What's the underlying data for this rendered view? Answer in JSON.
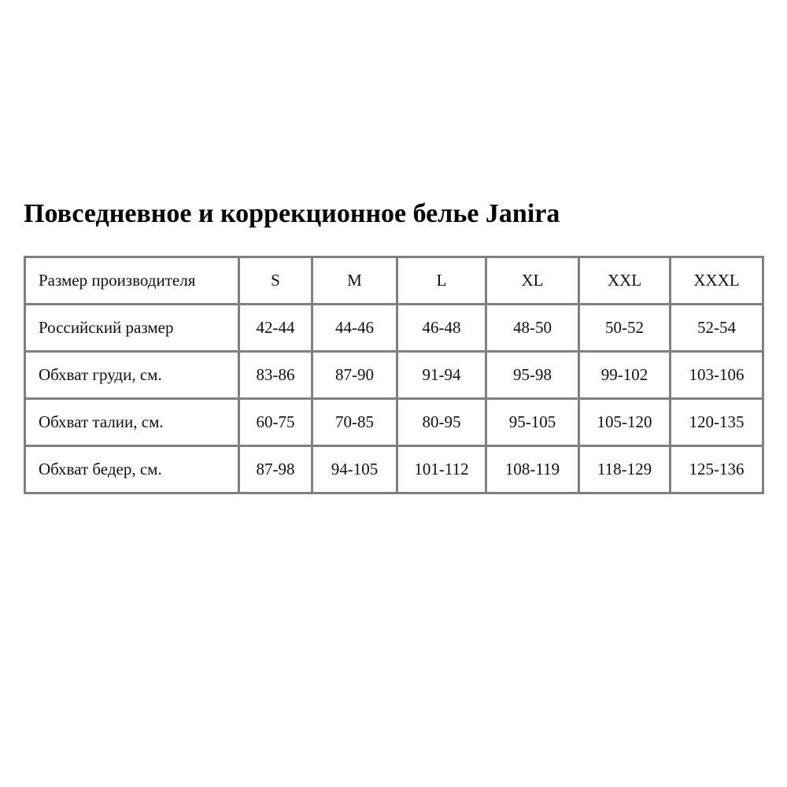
{
  "title": "Повседневное и коррекционное белье Janira",
  "table": {
    "rows": [
      [
        "Размер производителя",
        "S",
        "M",
        "L",
        "XL",
        "XXL",
        "XXXL"
      ],
      [
        "Российский размер",
        "42-44",
        "44-46",
        "46-48",
        "48-50",
        "50-52",
        "52-54"
      ],
      [
        "Обхват груди, см.",
        "83-86",
        "87-90",
        "91-94",
        "95-98",
        "99-102",
        "103-106"
      ],
      [
        "Обхват талии, см.",
        "60-75",
        "70-85",
        "80-95",
        "95-105",
        "105-120",
        "120-135"
      ],
      [
        "Обхват бедер, см.",
        "87-98",
        "94-105",
        "101-112",
        "108-119",
        "118-129",
        "125-136"
      ]
    ]
  },
  "colors": {
    "border": "#808080"
  }
}
